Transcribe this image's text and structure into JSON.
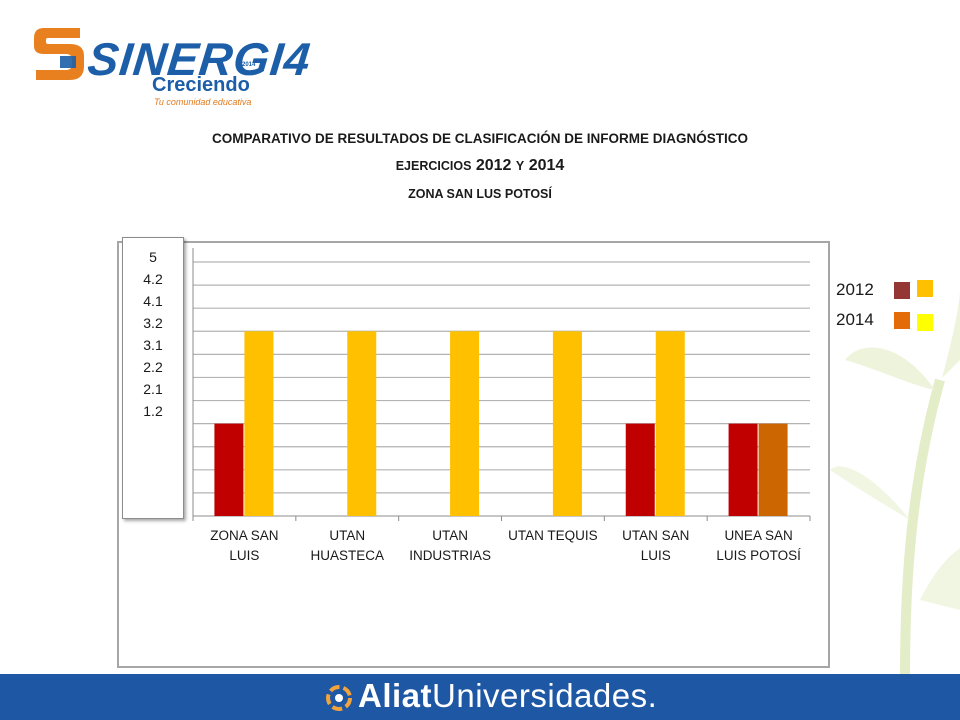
{
  "logo": {
    "word": "SINERGI4",
    "year": "2014",
    "sub": "Creciendo",
    "tagline": "Tu comunidad educativa"
  },
  "title": {
    "line1": "COMPARATIVO DE RESULTADOS DE CLASIFICACIÓN DE INFORME DIAGNÓSTICO",
    "line2_prefix": "EJERCICIOS",
    "line2_year1": "2012",
    "line2_conj": "Y",
    "line2_year2": "2014",
    "line3": "ZONA SAN LUS POTOSÍ"
  },
  "y_ticks": [
    "5",
    "4.2",
    "4.1",
    "3.2",
    "3.1",
    "2.2",
    "2.1",
    "1.2"
  ],
  "legend": [
    {
      "label": "2012",
      "colors": [
        "#943634",
        "#ffc000"
      ]
    },
    {
      "label": "2014",
      "colors": [
        "#e36c09",
        "#ffff00"
      ]
    }
  ],
  "chart_data": {
    "type": "bar",
    "categories": [
      [
        "ZONA SAN",
        "LUIS"
      ],
      [
        "UTAN",
        "HUASTECA"
      ],
      [
        "UTAN",
        "INDUSTRIAS"
      ],
      [
        "UTAN TEQUIS"
      ],
      [
        "UTAN SAN",
        "LUIS"
      ],
      [
        "UNEA SAN",
        "LUIS POTOSÍ"
      ]
    ],
    "series": [
      {
        "values": [
          4,
          0,
          0,
          0,
          4,
          4
        ],
        "colors": [
          "#c00000",
          "#c00000",
          "#c00000",
          "#c00000",
          "#c00000",
          "#c00000"
        ]
      },
      {
        "values": [
          8,
          8,
          8,
          8,
          8,
          4
        ],
        "colors": [
          "#ffc000",
          "#ffc000",
          "#ffc000",
          "#ffc000",
          "#ffc000",
          "#cc6600"
        ]
      }
    ],
    "ylim": [
      0,
      11
    ],
    "grid": true,
    "legend_position": "right"
  },
  "footer": {
    "brand_bold": "Aliat",
    "brand_rest": "Universidades."
  }
}
